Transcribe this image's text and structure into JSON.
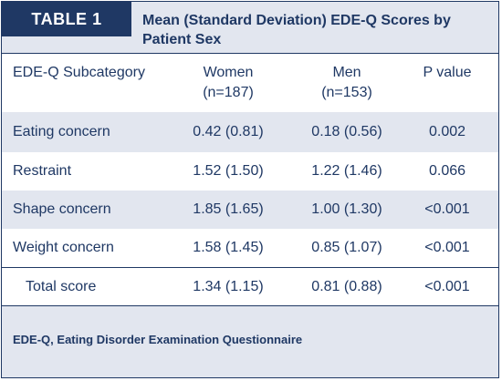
{
  "table": {
    "label": "TABLE 1",
    "title": "Mean (Standard Deviation) EDE-Q Scores by Patient Sex",
    "columns": [
      {
        "line1": "EDE-Q Subcategory",
        "line2": ""
      },
      {
        "line1": "Women",
        "line2": "(n=187)"
      },
      {
        "line1": "Men",
        "line2": "(n=153)"
      },
      {
        "line1": "P value",
        "line2": ""
      }
    ],
    "rows": [
      {
        "category": "Eating concern",
        "women": "0.42 (0.81)",
        "men": "0.18 (0.56)",
        "p": "0.002"
      },
      {
        "category": "Restraint",
        "women": "1.52 (1.50)",
        "men": "1.22 (1.46)",
        "p": "0.066"
      },
      {
        "category": "Shape concern",
        "women": "1.85 (1.65)",
        "men": "1.00 (1.30)",
        "p": "<0.001"
      },
      {
        "category": "Weight concern",
        "women": "1.58 (1.45)",
        "men": "0.85 (1.07)",
        "p": "<0.001"
      },
      {
        "category": "Total score",
        "women": "1.34 (1.15)",
        "men": "0.81 (0.88)",
        "p": "<0.001"
      }
    ],
    "footnote": "EDE-Q, Eating Disorder Examination Questionnaire"
  }
}
